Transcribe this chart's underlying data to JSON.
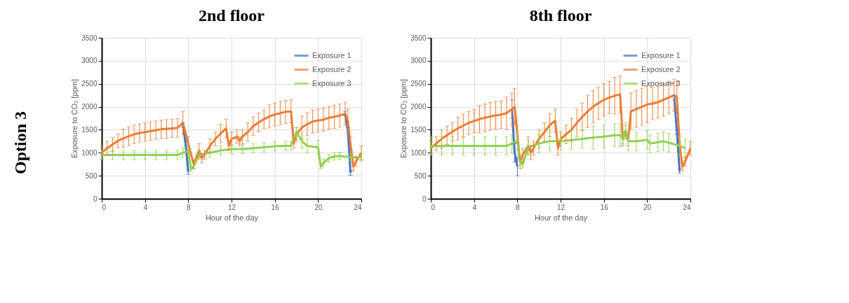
{
  "chart_data": [
    {
      "type": "line",
      "title": "2nd floor",
      "annotations": [
        "Option 3"
      ],
      "xlabel": "Hour of the day",
      "ylabel": "Exposure to CO₂ [ppm]",
      "xlim": [
        0,
        24
      ],
      "xticks": [
        0,
        4,
        8,
        12,
        16,
        20,
        24
      ],
      "ylim": [
        0,
        3500
      ],
      "yticks": [
        0,
        500,
        1000,
        1500,
        2000,
        2500,
        3000,
        3500
      ],
      "grid": true,
      "legend": "top right",
      "series": [
        {
          "name": "Exposure 1",
          "color": "#4472c4",
          "x": [
            7.5,
            7.75,
            8,
            15,
            22.5,
            22.75,
            23
          ],
          "values": [
            1600,
            1200,
            580,
            null,
            1850,
            1500,
            560
          ],
          "errors": [
            50,
            50,
            50,
            null,
            50,
            50,
            50
          ]
        },
        {
          "name": "Exposure 2",
          "color": "#ed7d31",
          "x": [
            0,
            0.5,
            1,
            1.5,
            2,
            2.5,
            3,
            3.5,
            4,
            4.5,
            5,
            5.5,
            6,
            6.5,
            7,
            7.5,
            8,
            8.5,
            9,
            9.25,
            9.5,
            10,
            10.5,
            11,
            11.5,
            11.75,
            12,
            12.5,
            12.75,
            13,
            13.5,
            14,
            14.5,
            15,
            15.5,
            16,
            16.5,
            17,
            17.5,
            17.75,
            18,
            18.5,
            19,
            19.5,
            20,
            20.5,
            21,
            21.5,
            22,
            22.5,
            22.75,
            23,
            23.25,
            23.5,
            24
          ],
          "values": [
            1000,
            1100,
            1180,
            1260,
            1310,
            1360,
            1400,
            1430,
            1450,
            1470,
            1490,
            1510,
            1520,
            1530,
            1540,
            1650,
            1200,
            750,
            1050,
            880,
            950,
            1150,
            1300,
            1420,
            1530,
            1150,
            1300,
            1350,
            1250,
            1350,
            1450,
            1580,
            1660,
            1730,
            1790,
            1830,
            1860,
            1890,
            1900,
            1200,
            1400,
            1550,
            1620,
            1680,
            1700,
            1720,
            1760,
            1780,
            1810,
            1850,
            1700,
            1200,
            700,
            800,
            1000
          ],
          "errors": [
            150,
            150,
            150,
            150,
            200,
            200,
            200,
            200,
            200,
            200,
            200,
            200,
            200,
            200,
            200,
            250,
            150,
            100,
            150,
            100,
            100,
            150,
            150,
            200,
            200,
            100,
            150,
            150,
            100,
            150,
            200,
            200,
            200,
            200,
            250,
            250,
            250,
            250,
            250,
            100,
            150,
            250,
            250,
            250,
            250,
            250,
            250,
            250,
            250,
            250,
            250,
            150,
            100,
            100,
            150
          ]
        },
        {
          "name": "Exposure 3",
          "color": "#92d050",
          "x": [
            0,
            1,
            2,
            3,
            4,
            5,
            6,
            7,
            7.5,
            8,
            8.25,
            8.5,
            9,
            10,
            11,
            12,
            13,
            14,
            15,
            16,
            17,
            17.5,
            18,
            18.5,
            19,
            20,
            20.25,
            20.5,
            21,
            21.5,
            22,
            23,
            24
          ],
          "values": [
            950,
            950,
            950,
            950,
            950,
            950,
            950,
            950,
            1000,
            1030,
            650,
            700,
            950,
            1000,
            1050,
            1080,
            1080,
            1100,
            1120,
            1140,
            1150,
            1150,
            1450,
            1250,
            1150,
            1120,
            700,
            780,
            880,
            920,
            930,
            900,
            900
          ],
          "errors": [
            100,
            100,
            100,
            100,
            100,
            100,
            100,
            100,
            100,
            100,
            50,
            50,
            100,
            100,
            100,
            100,
            100,
            100,
            100,
            100,
            100,
            100,
            100,
            150,
            150,
            150,
            50,
            80,
            80,
            80,
            80,
            80,
            80
          ]
        }
      ]
    },
    {
      "type": "line",
      "title": "8th floor",
      "xlabel": "Hour of the day",
      "ylabel": "Exposure to CO₂ [ppm]",
      "xlim": [
        0,
        24
      ],
      "xticks": [
        0,
        4,
        8,
        12,
        16,
        20,
        24
      ],
      "ylim": [
        0,
        3500
      ],
      "yticks": [
        0,
        500,
        1000,
        1500,
        2000,
        2500,
        3000,
        3500
      ],
      "grid": true,
      "legend": "top right",
      "series": [
        {
          "name": "Exposure 1",
          "color": "#4472c4",
          "x": [
            7.5,
            7.75,
            8,
            15,
            22.5,
            22.75,
            23
          ],
          "values": [
            1950,
            1000,
            700,
            null,
            2200,
            1450,
            600
          ],
          "errors": [
            200,
            200,
            200,
            null,
            50,
            50,
            50
          ]
        },
        {
          "name": "Exposure 2",
          "color": "#ed7d31",
          "x": [
            0,
            0.5,
            1,
            1.5,
            2,
            2.5,
            3,
            3.5,
            4,
            4.5,
            5,
            5.5,
            6,
            6.5,
            7,
            7.5,
            7.75,
            8,
            8.25,
            8.5,
            9,
            9.25,
            9.5,
            10,
            10.5,
            11,
            11.5,
            11.75,
            12,
            12.5,
            13,
            13.5,
            14,
            14.5,
            15,
            15.5,
            16,
            16.5,
            17,
            17.5,
            17.75,
            18,
            18.25,
            18.5,
            19,
            19.5,
            20,
            20.5,
            21,
            21.5,
            22,
            22.5,
            22.75,
            23,
            23.25,
            23.5,
            24
          ],
          "values": [
            1100,
            1200,
            1300,
            1380,
            1460,
            1530,
            1590,
            1650,
            1690,
            1730,
            1760,
            1790,
            1810,
            1830,
            1860,
            1950,
            2000,
            1400,
            800,
            950,
            1150,
            1000,
            1100,
            1300,
            1450,
            1600,
            1700,
            1100,
            1300,
            1400,
            1500,
            1650,
            1780,
            1900,
            2000,
            2080,
            2150,
            2200,
            2240,
            2270,
            1300,
            1450,
            1300,
            1900,
            1950,
            2000,
            2050,
            2070,
            2100,
            2150,
            2200,
            2250,
            2200,
            1200,
            700,
            800,
            1100
          ],
          "errors": [
            150,
            150,
            200,
            200,
            200,
            250,
            250,
            250,
            250,
            300,
            300,
            300,
            300,
            300,
            350,
            350,
            400,
            200,
            150,
            150,
            200,
            150,
            150,
            200,
            200,
            250,
            250,
            150,
            150,
            200,
            250,
            300,
            300,
            350,
            350,
            350,
            350,
            350,
            400,
            400,
            150,
            150,
            150,
            400,
            400,
            400,
            400,
            350,
            350,
            350,
            350,
            350,
            350,
            200,
            100,
            100,
            150
          ]
        },
        {
          "name": "Exposure 3",
          "color": "#92d050",
          "x": [
            0,
            1,
            2,
            3,
            4,
            5,
            6,
            7,
            7.5,
            8,
            8.25,
            8.5,
            9,
            10,
            11,
            12,
            13,
            14,
            15,
            16,
            17,
            17.5,
            17.75,
            18,
            18.25,
            19,
            20,
            20.25,
            21,
            21.5,
            22,
            23,
            23.5
          ],
          "values": [
            1150,
            1150,
            1150,
            1150,
            1150,
            1150,
            1150,
            1150,
            1200,
            1250,
            800,
            750,
            1120,
            1200,
            1250,
            1250,
            1280,
            1300,
            1330,
            1350,
            1380,
            1380,
            1330,
            1480,
            1250,
            1250,
            1280,
            1200,
            1230,
            1250,
            1220,
            1150,
            1100
          ],
          "errors": [
            200,
            200,
            200,
            200,
            200,
            200,
            200,
            200,
            200,
            200,
            80,
            80,
            170,
            200,
            200,
            200,
            200,
            200,
            250,
            250,
            250,
            250,
            120,
            180,
            200,
            200,
            200,
            200,
            200,
            200,
            200,
            200,
            200
          ]
        }
      ]
    }
  ]
}
